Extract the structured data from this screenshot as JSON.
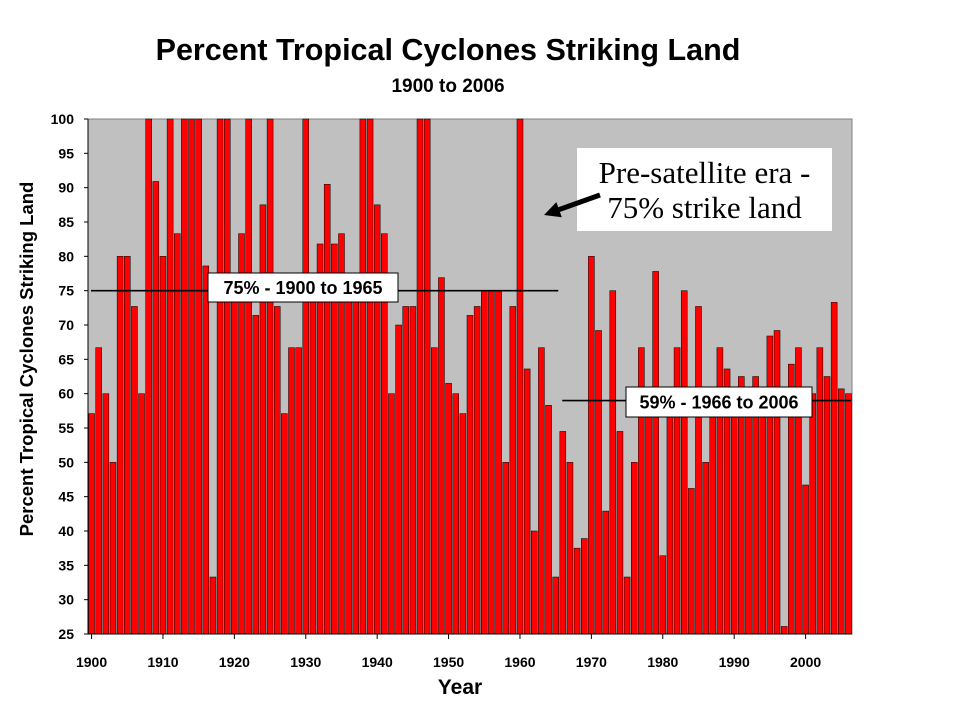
{
  "chart_data": {
    "type": "bar",
    "title": "Percent Tropical Cyclones Striking Land",
    "subtitle": "1900 to 2006",
    "xlabel": "Year",
    "ylabel": "Percent Tropical Cyclones Striking Land",
    "ylim": [
      25,
      100
    ],
    "y_ticks": [
      25,
      30,
      35,
      40,
      45,
      50,
      55,
      60,
      65,
      70,
      75,
      80,
      85,
      90,
      95,
      100
    ],
    "x_ticks": [
      1900,
      1910,
      1920,
      1930,
      1940,
      1950,
      1960,
      1970,
      1980,
      1990,
      2000
    ],
    "grid": false,
    "categories": [
      1900,
      1901,
      1902,
      1903,
      1904,
      1905,
      1906,
      1907,
      1908,
      1909,
      1910,
      1911,
      1912,
      1913,
      1914,
      1915,
      1916,
      1917,
      1918,
      1919,
      1920,
      1921,
      1922,
      1923,
      1924,
      1925,
      1926,
      1927,
      1928,
      1929,
      1930,
      1931,
      1932,
      1933,
      1934,
      1935,
      1936,
      1937,
      1938,
      1939,
      1940,
      1941,
      1942,
      1943,
      1944,
      1945,
      1946,
      1947,
      1948,
      1949,
      1950,
      1951,
      1952,
      1953,
      1954,
      1955,
      1956,
      1957,
      1958,
      1959,
      1960,
      1961,
      1962,
      1963,
      1964,
      1965,
      1966,
      1967,
      1968,
      1969,
      1970,
      1971,
      1972,
      1973,
      1974,
      1975,
      1976,
      1977,
      1978,
      1979,
      1980,
      1981,
      1982,
      1983,
      1984,
      1985,
      1986,
      1987,
      1988,
      1989,
      1990,
      1991,
      1992,
      1993,
      1994,
      1995,
      1996,
      1997,
      1998,
      1999,
      2000,
      2001,
      2002,
      2003,
      2004,
      2005,
      2006
    ],
    "values": [
      57.1,
      66.7,
      60,
      50,
      80,
      80,
      72.7,
      60,
      100,
      90.9,
      80,
      100,
      83.3,
      100,
      100,
      100,
      78.6,
      33.3,
      100,
      100,
      75,
      83.3,
      100,
      71.4,
      87.5,
      100,
      72.7,
      57.1,
      66.7,
      66.7,
      100,
      75,
      81.8,
      90.5,
      81.8,
      83.3,
      75,
      75,
      100,
      100,
      87.5,
      83.3,
      60,
      70,
      72.7,
      72.7,
      100,
      100,
      66.7,
      76.9,
      61.5,
      60,
      57.1,
      71.4,
      72.7,
      75,
      75,
      75,
      50,
      72.7,
      100,
      63.6,
      40,
      66.7,
      58.3,
      33.3,
      54.5,
      50,
      37.5,
      38.9,
      80,
      69.2,
      42.9,
      75,
      54.5,
      33.3,
      50,
      66.7,
      60,
      77.8,
      36.4,
      58.3,
      66.7,
      75,
      46.2,
      72.7,
      50,
      60,
      66.7,
      63.6,
      58.3,
      62.5,
      60,
      62.5,
      58.3,
      68.4,
      69.2,
      26.1,
      64.3,
      66.7,
      46.7,
      60,
      66.7,
      62.5,
      73.3,
      60.7,
      60
    ],
    "reference_lines": [
      {
        "label": "75% - 1900 to 1965",
        "value": 75,
        "from": 1900,
        "to": 1965
      },
      {
        "label": "59% - 1966 to 2006",
        "value": 59,
        "from": 1966,
        "to": 2006
      }
    ],
    "annotations": [
      {
        "lines": [
          "Pre-satellite era -",
          "75% strike land"
        ]
      }
    ],
    "colors": {
      "bar": "#ff0000",
      "bar_edge": "#000000",
      "plot_background": "#c0c0c0",
      "reference_line": "#000000"
    }
  }
}
